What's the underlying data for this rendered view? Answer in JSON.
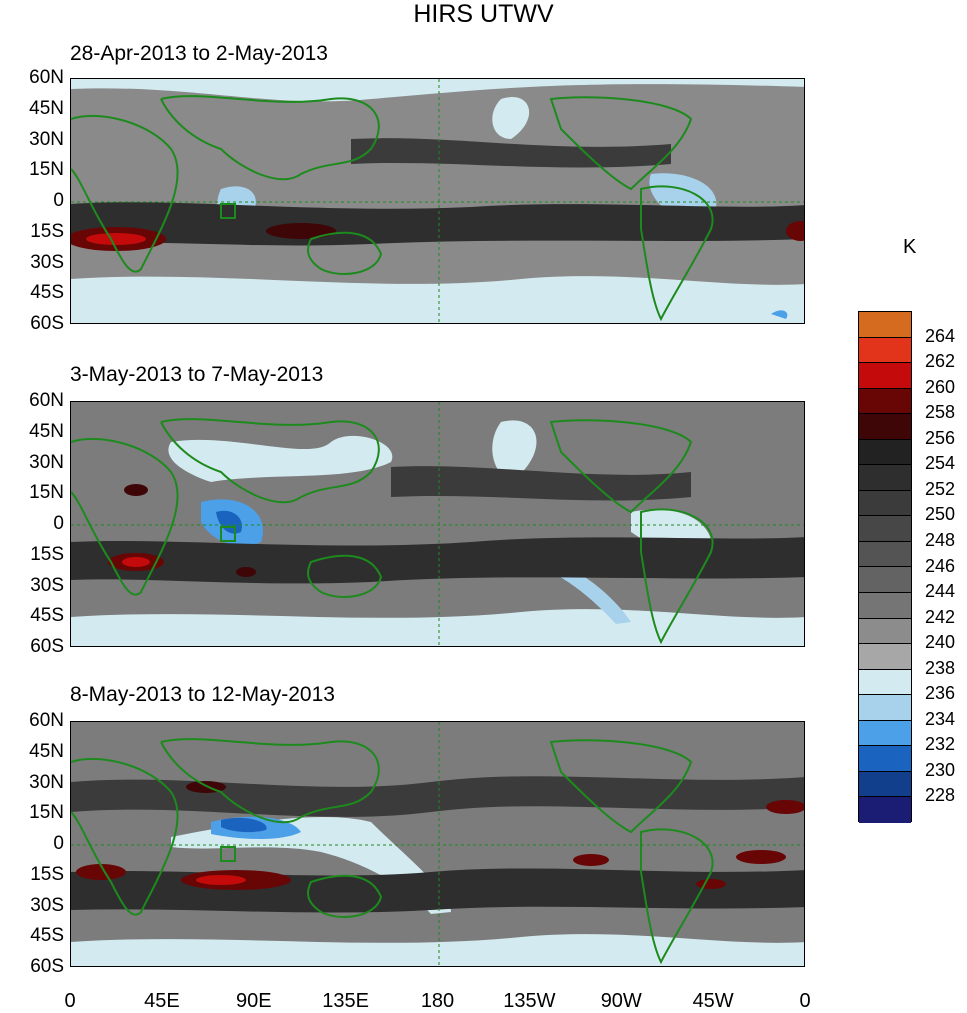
{
  "title": "HIRS UTWV",
  "panels": [
    {
      "label": "28-Apr-2013 to 2-May-2013"
    },
    {
      "label": "3-May-2013 to 7-May-2013"
    },
    {
      "label": "8-May-2013 to 12-May-2013"
    }
  ],
  "y_ticks": [
    "60N",
    "45N",
    "30N",
    "15N",
    "0",
    "15S",
    "30S",
    "45S",
    "60S"
  ],
  "x_ticks": [
    "0",
    "45E",
    "90E",
    "135E",
    "180",
    "135W",
    "90W",
    "45W",
    "0"
  ],
  "colorbar": {
    "unit": "K",
    "levels": [
      "228",
      "230",
      "232",
      "234",
      "236",
      "238",
      "240",
      "242",
      "244",
      "246",
      "248",
      "250",
      "252",
      "254",
      "256",
      "258",
      "260",
      "262",
      "264"
    ],
    "colors": [
      "#1a1d73",
      "#123f8c",
      "#1a64c0",
      "#4ba0e8",
      "#a8d2ec",
      "#d3ebf0",
      "#a7a7a7",
      "#8c8c8c",
      "#757575",
      "#636363",
      "#545454",
      "#474747",
      "#3b3b3b",
      "#2e2e2e",
      "#222222",
      "#3e0606",
      "#680606",
      "#c40a0a",
      "#e2341a",
      "#d56b1e"
    ]
  },
  "map": {
    "x_range": [
      "0",
      "0"
    ],
    "y_range": [
      "60S",
      "60N"
    ],
    "coastline_color": "#1d8a1d"
  }
}
